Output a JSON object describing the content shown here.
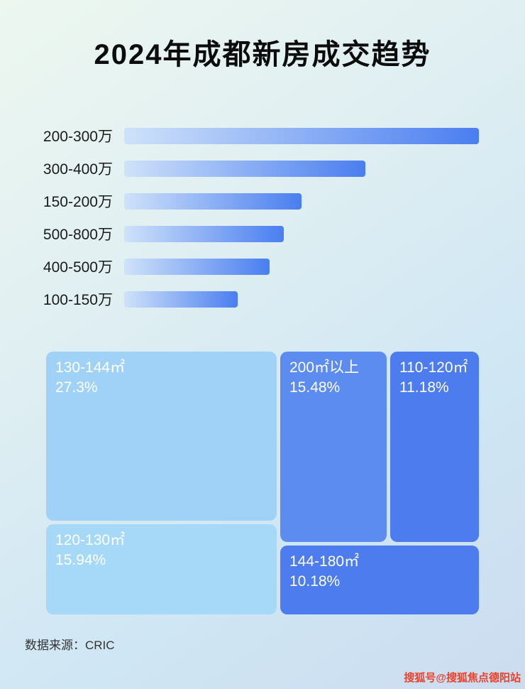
{
  "page": {
    "title": "2024年成都新房成交趋势",
    "source": "数据来源：CRIC",
    "watermark": "搜狐号@搜狐焦点德阳站"
  },
  "chart_data": [
    {
      "type": "bar",
      "orientation": "horizontal",
      "title": "2024年成都新房成交趋势",
      "categories": [
        "200-300万",
        "300-400万",
        "150-200万",
        "500-800万",
        "400-500万",
        "100-150万"
      ],
      "values_relative_pct": [
        100,
        68,
        50,
        45,
        41,
        32
      ],
      "bar_gradient": [
        "#cfe2fa",
        "#4a7ef0"
      ],
      "xlabel": "",
      "ylabel": "",
      "grid": false,
      "legend": false
    },
    {
      "type": "treemap",
      "blocks": [
        {
          "label": "130-144㎡",
          "value": "27.3%",
          "color": "#9fd2f6"
        },
        {
          "label": "120-130㎡",
          "value": "15.94%",
          "color": "#a6d8f8"
        },
        {
          "label": "200㎡以上",
          "value": "15.48%",
          "color": "#5c8cf0"
        },
        {
          "label": "110-120㎡",
          "value": "11.18%",
          "color": "#4c7cee"
        },
        {
          "label": "144-180㎡",
          "value": "10.18%",
          "color": "#4c7cee"
        }
      ]
    }
  ]
}
